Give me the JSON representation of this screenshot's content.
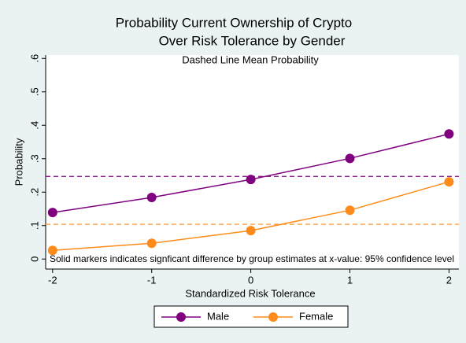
{
  "chart_data": {
    "type": "line",
    "title": [
      "Probability Current Ownership of Crypto",
      "Over Risk Tolerance by Gender"
    ],
    "subtitle": "Dashed Line Mean Probability",
    "note": "Solid markers indicates signficant difference by group estimates at x-value: 95% confidence level",
    "x_label": "Standardized Risk Tolerance",
    "y_label": "Probability",
    "x": [
      -2,
      -1,
      0,
      1,
      2
    ],
    "series": [
      {
        "name": "Male",
        "color": "#800080",
        "values": [
          0.139,
          0.184,
          0.238,
          0.301,
          0.374
        ],
        "mean": 0.247
      },
      {
        "name": "Female",
        "color": "#ff8c1a",
        "values": [
          0.026,
          0.047,
          0.085,
          0.146,
          0.231
        ],
        "mean": 0.104
      }
    ],
    "xlim": [
      -2.07,
      2.1
    ],
    "ylim": [
      -0.03,
      0.61
    ],
    "xticks": [
      -2,
      -1,
      0,
      1,
      2
    ],
    "yticks": [
      0,
      {
        "value": 0.1,
        "label": ".1"
      },
      {
        "value": 0.2,
        "label": ".2"
      },
      {
        "value": 0.3,
        "label": ".3"
      },
      {
        "value": 0.4,
        "label": ".4"
      },
      {
        "value": 0.5,
        "label": ".5"
      },
      {
        "value": 0.6,
        "label": ".6"
      }
    ],
    "legend": "bottom"
  }
}
